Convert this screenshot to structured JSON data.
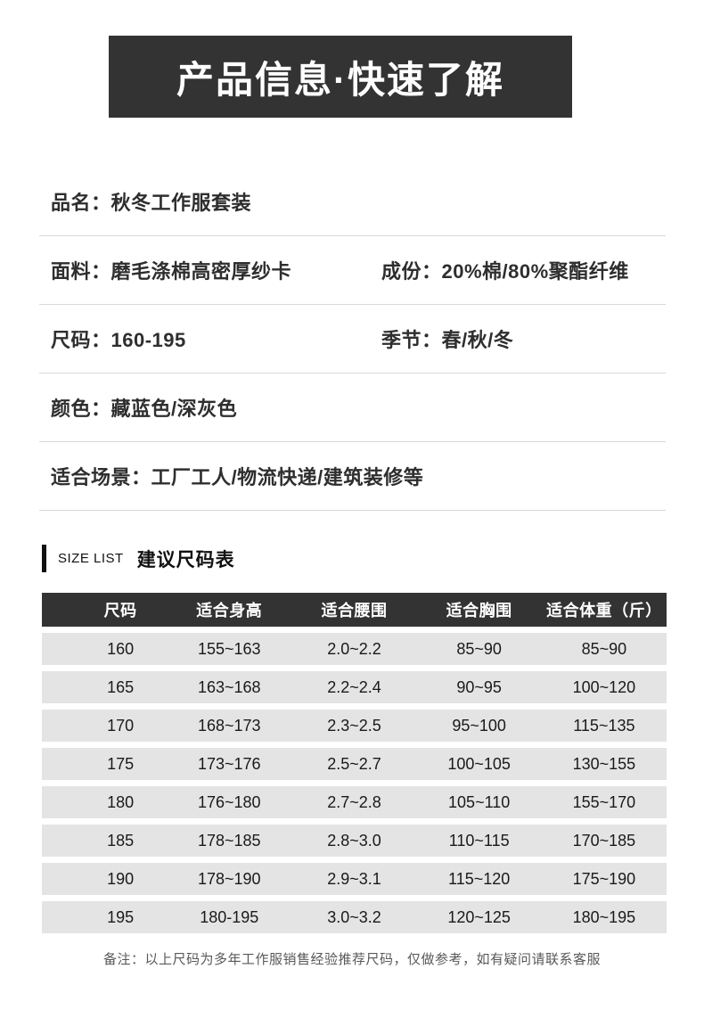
{
  "banner": {
    "title": "产品信息·快速了解"
  },
  "info": {
    "rows": [
      {
        "cells": [
          {
            "label": "品名：",
            "value": "秋冬工作服套装"
          }
        ]
      },
      {
        "cells": [
          {
            "label": "面料：",
            "value": "磨毛涤棉高密厚纱卡"
          },
          {
            "label": "成份：",
            "value": "20%棉/80%聚酯纤维"
          }
        ]
      },
      {
        "cells": [
          {
            "label": "尺码：",
            "value": "160-195"
          },
          {
            "label": "季节：",
            "value": "春/秋/冬"
          }
        ]
      },
      {
        "cells": [
          {
            "label": "颜色：",
            "value": "藏蓝色/深灰色"
          }
        ]
      },
      {
        "cells": [
          {
            "label": "适合场景：",
            "value": "工厂工人/物流快递/建筑装修等"
          }
        ]
      }
    ]
  },
  "size_list": {
    "eyebrow": "SIZE LIST",
    "title": "建议尺码表"
  },
  "size_table": {
    "columns": [
      "尺码",
      "适合身高",
      "适合腰围",
      "适合胸围",
      "适合体重（斤）"
    ],
    "rows": [
      [
        "160",
        "155~163",
        "2.0~2.2",
        "85~90",
        "85~90"
      ],
      [
        "165",
        "163~168",
        "2.2~2.4",
        "90~95",
        "100~120"
      ],
      [
        "170",
        "168~173",
        "2.3~2.5",
        "95~100",
        "115~135"
      ],
      [
        "175",
        "173~176",
        "2.5~2.7",
        "100~105",
        "130~155"
      ],
      [
        "180",
        "176~180",
        "2.7~2.8",
        "105~110",
        "155~170"
      ],
      [
        "185",
        "178~185",
        "2.8~3.0",
        "110~115",
        "170~185"
      ],
      [
        "190",
        "178~190",
        "2.9~3.1",
        "115~120",
        "175~190"
      ],
      [
        "195",
        "180-195",
        "3.0~3.2",
        "120~125",
        "180~195"
      ]
    ]
  },
  "footer": {
    "note": "备注：以上尺码为多年工作服销售经验推荐尺码，仅做参考，如有疑问请联系客服"
  },
  "colors": {
    "banner_bg": "#333333",
    "header_bg": "#333333",
    "row_bg": "#e4e4e4",
    "divider": "#d8d8d8",
    "text": "#2e2e2e",
    "footer_text": "#595959"
  }
}
